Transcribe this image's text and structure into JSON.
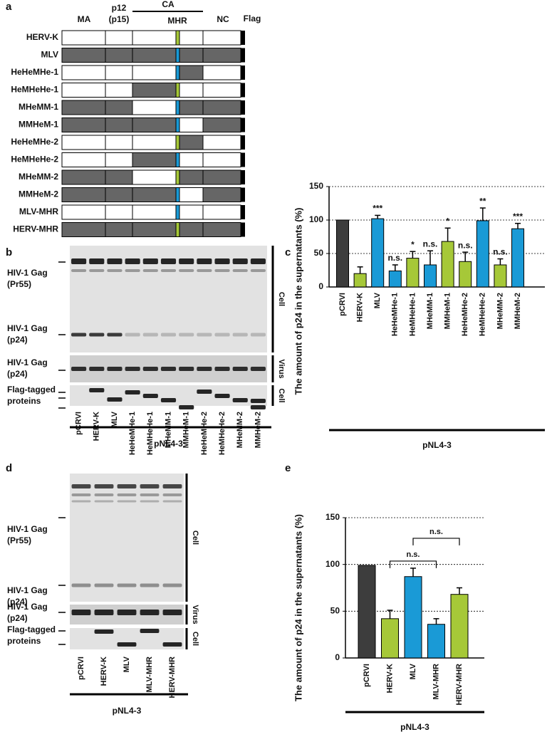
{
  "panel_a": {
    "letter": "a",
    "headers": {
      "ma": "MA",
      "p12": "p12",
      "p15": "(p15)",
      "ca": "CA",
      "mhr": "MHR",
      "nc": "NC",
      "flag": "Flag"
    },
    "constructs": [
      {
        "name": "HERV-K",
        "fills": [
          "#ffffff",
          "#ffffff",
          "#ffffff",
          "#a6c838",
          "#ffffff",
          "#ffffff"
        ]
      },
      {
        "name": "MLV",
        "fills": [
          "#666666",
          "#666666",
          "#666666",
          "#1a9ad6",
          "#666666",
          "#666666"
        ]
      },
      {
        "name": "HeHeMHe-1",
        "fills": [
          "#ffffff",
          "#ffffff",
          "#ffffff",
          "#1a9ad6",
          "#666666",
          "#ffffff"
        ]
      },
      {
        "name": "HeMHeHe-1",
        "fills": [
          "#ffffff",
          "#ffffff",
          "#666666",
          "#a6c838",
          "#ffffff",
          "#ffffff"
        ]
      },
      {
        "name": "MHeMM-1",
        "fills": [
          "#666666",
          "#666666",
          "#ffffff",
          "#1a9ad6",
          "#666666",
          "#666666"
        ]
      },
      {
        "name": "MMHeM-1",
        "fills": [
          "#666666",
          "#666666",
          "#666666",
          "#1a9ad6",
          "#ffffff",
          "#666666"
        ]
      },
      {
        "name": "HeHeMHe-2",
        "fills": [
          "#ffffff",
          "#ffffff",
          "#ffffff",
          "#a6c838",
          "#666666",
          "#ffffff"
        ]
      },
      {
        "name": "HeMHeHe-2",
        "fills": [
          "#ffffff",
          "#ffffff",
          "#666666",
          "#1a9ad6",
          "#ffffff",
          "#ffffff"
        ]
      },
      {
        "name": "MHeMM-2",
        "fills": [
          "#666666",
          "#666666",
          "#ffffff",
          "#a6c838",
          "#666666",
          "#666666"
        ]
      },
      {
        "name": "MMHeM-2",
        "fills": [
          "#666666",
          "#666666",
          "#666666",
          "#1a9ad6",
          "#ffffff",
          "#666666"
        ]
      },
      {
        "name": "MLV-MHR",
        "fills": [
          "#ffffff",
          "#ffffff",
          "#ffffff",
          "#1a9ad6",
          "#ffffff",
          "#ffffff"
        ]
      },
      {
        "name": "HERV-MHR",
        "fills": [
          "#666666",
          "#666666",
          "#666666",
          "#a6c838",
          "#666666",
          "#666666"
        ]
      }
    ]
  },
  "panel_b": {
    "letter": "b",
    "band_labels": [
      [
        "HIV-1 Gag",
        "(Pr55)"
      ],
      [
        "HIV-1 Gag",
        "(p24)"
      ],
      [
        "HIV-1 Gag",
        "(p24)"
      ],
      [
        "Flag-tagged",
        "proteins"
      ]
    ],
    "compartments": [
      "Cell",
      "Virus",
      "Cell"
    ],
    "lanes": [
      "pCRVI",
      "HERV-K",
      "MLV",
      "HeHeMHe-1",
      "HeMHeHe-1",
      "MHeMM-1",
      "MMHeM-1",
      "HeHeMHe-2",
      "HeMHeHe-2",
      "MHeMM-2",
      "MMHeM-2"
    ],
    "plasmid": "pNL4-3"
  },
  "panel_d": {
    "letter": "d",
    "band_labels": [
      [
        "HIV-1 Gag",
        "(Pr55)"
      ],
      [
        "HIV-1 Gag",
        "(p24)"
      ],
      [
        "HIV-1 Gag",
        "(p24)"
      ],
      [
        "Flag-tagged",
        "proteins"
      ]
    ],
    "compartments": [
      "Cell",
      "Virus",
      "Cell"
    ],
    "lanes": [
      "pCRVI",
      "HERV-K",
      "MLV",
      "MLV-MHR",
      "HERV-MHR"
    ],
    "plasmid": "pNL4-3"
  },
  "chart_data": [
    {
      "type": "bar",
      "panel_label": "c",
      "y_label": "The amount of p24 in the supernatants (%)",
      "x_label": "pNL4-3",
      "categories": [
        "pCRVI",
        "HERV-K",
        "MLV",
        "HeHeMHe-1",
        "HeMHeHe-1",
        "MHeMM-1",
        "MMHeM-1",
        "HeHeMHe-2",
        "HeMHeHe-2",
        "MHeMM-2",
        "MMHeM-2"
      ],
      "values": [
        100,
        20,
        102,
        24,
        43,
        33,
        68,
        38,
        99,
        33,
        87
      ],
      "errors": [
        null,
        10,
        5,
        9,
        10,
        21,
        20,
        14,
        19,
        9,
        8
      ],
      "colors": [
        "#3d3d3d",
        "#a6c838",
        "#1a9ad6",
        "#1a9ad6",
        "#a6c838",
        "#1a9ad6",
        "#a6c838",
        "#a6c838",
        "#1a9ad6",
        "#a6c838",
        "#1a9ad6"
      ],
      "significance": [
        null,
        null,
        "***",
        "n.s.",
        "*",
        "n.s.",
        "*",
        "n.s.",
        "**",
        "n.s.",
        "***"
      ],
      "ylim": [
        0,
        150
      ],
      "yticks": [
        0,
        50,
        100,
        150
      ],
      "grid": true
    },
    {
      "type": "bar",
      "panel_label": "e",
      "y_label": "The amount of p24 in the supernatants (%)",
      "x_label": "pNL4-3",
      "categories": [
        "pCRVI",
        "HERV-K",
        "MLV",
        "MLV-MHR",
        "HERV-MHR"
      ],
      "values": [
        99,
        42,
        87,
        36,
        68
      ],
      "errors": [
        null,
        9,
        9,
        6,
        7
      ],
      "colors": [
        "#3d3d3d",
        "#a6c838",
        "#1a9ad6",
        "#1a9ad6",
        "#a6c838"
      ],
      "comparisons": [
        {
          "between": [
            1,
            3
          ],
          "label": "n.s."
        },
        {
          "between": [
            2,
            4
          ],
          "label": "n.s."
        }
      ],
      "ylim": [
        0,
        150
      ],
      "yticks": [
        0,
        50,
        100,
        150
      ],
      "grid": true
    }
  ]
}
